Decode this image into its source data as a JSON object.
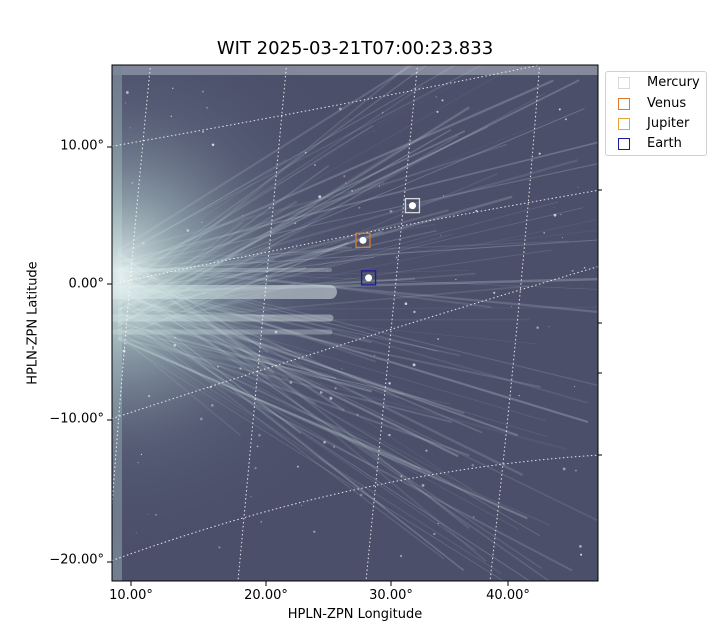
{
  "title": "WIT 2025-03-21T07:00:23.833",
  "xlabel": "HPLN-ZPN Longitude",
  "ylabel": "HPLN-ZPN Latitude",
  "y_ticks": [
    "10.00°",
    "0.00°",
    "−10.00°",
    "−20.00°"
  ],
  "x_ticks": [
    "10.00°",
    "20.00°",
    "30.00°",
    "40.00°"
  ],
  "legend": [
    {
      "label": "Mercury",
      "color": "#d9d9d9"
    },
    {
      "label": "Venus",
      "color": "#e07a2e"
    },
    {
      "label": "Jupiter",
      "color": "#e8a23a"
    },
    {
      "label": "Earth",
      "color": "#1a1a9c"
    }
  ],
  "markers": [
    {
      "name": "Mercury",
      "lon": 32.1,
      "lat": 4.3
    },
    {
      "name": "Venus",
      "lon": 28.3,
      "lat": 2.0
    },
    {
      "name": "Earth",
      "lon": 28.9,
      "lat": -0.8
    }
  ],
  "image": {
    "background_color": "#4b4f6a",
    "streamer_color": "#cfe3e4",
    "grid_color": "#ffffff"
  }
}
